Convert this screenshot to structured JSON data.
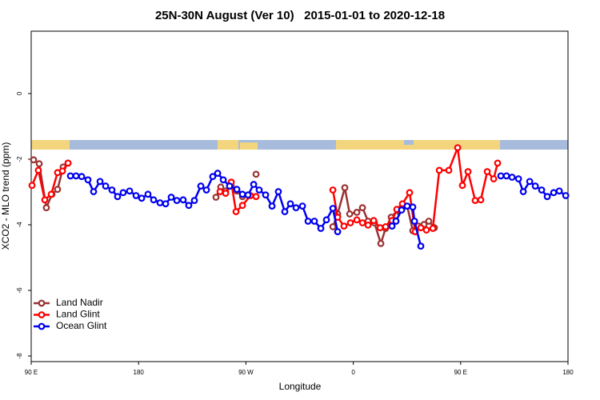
{
  "chart_data": {
    "type": "line",
    "title": "25N-30N August (Ver 10)   2015-01-01 to 2020-12-18",
    "xlabel": "Longitude",
    "ylabel": "XCO2 - MLO trend (ppm)",
    "xlim": [
      90,
      540
    ],
    "ylim": [
      -8.17,
      1.9
    ],
    "xticks": [
      {
        "value": 90,
        "label": "90 E"
      },
      180,
      {
        "value": 270,
        "label": "90 W"
      },
      {
        "value": 360,
        "label": "0"
      },
      {
        "value": 450,
        "label": "90 E"
      },
      {
        "value": 540,
        "label": "180"
      }
    ],
    "yticks": [
      -8,
      -6,
      -4,
      -2,
      0
    ],
    "legend": "bottom-left",
    "series": [
      {
        "name": "Land Nadir",
        "color": "#993333",
        "x": [
          92.0,
          96.7,
          102.7,
          107.4,
          112.1,
          116.8,
          120.8,
          null,
          244.9,
          248.9,
          253.0,
          257.7,
          262.4,
          267.1,
          null,
          278.5,
          null,
          342.9,
          346.9,
          352.9,
          357.0,
          363.0,
          367.7,
          372.4,
          377.7,
          383.1,
          387.1,
          391.8,
          395.8,
          400.5,
          405.2,
          409.9,
          414.6,
          419.3,
          423.3,
          428.0
        ],
        "values": [
          -2.02,
          -2.14,
          -3.48,
          -3.07,
          -2.92,
          -2.24,
          -2.12,
          null,
          -3.16,
          -2.85,
          -2.97,
          -2.82,
          -2.97,
          -3.14,
          null,
          -2.46,
          null,
          -4.06,
          -3.67,
          -2.87,
          -3.67,
          -3.62,
          -3.48,
          -3.89,
          -3.94,
          -4.57,
          -4.11,
          -3.77,
          -3.72,
          -3.53,
          -3.43,
          -4.18,
          -4.04,
          -3.99,
          -3.89,
          -4.09
        ]
      },
      {
        "name": "Land Glint",
        "color": "#ff0000",
        "x": [
          90.7,
          96.0,
          101.4,
          106.8,
          112.1,
          116.2,
          120.9,
          null,
          248.3,
          253.0,
          257.7,
          261.7,
          267.1,
          273.8,
          278.5,
          null,
          342.9,
          346.9,
          352.2,
          357.6,
          363.0,
          367.7,
          372.4,
          377.1,
          382.5,
          387.1,
          392.5,
          396.5,
          401.2,
          407.2,
          411.9,
          416.6,
          421.3,
          426.7,
          432.1,
          440.1,
          447.5,
          451.5,
          456.2,
          462.2,
          466.9,
          472.3,
          477.7,
          481.0
        ],
        "values": [
          -2.8,
          -2.34,
          -3.24,
          -3.07,
          -2.41,
          -2.36,
          -2.12,
          null,
          -2.99,
          -3.04,
          -2.7,
          -3.6,
          -3.41,
          -3.11,
          -3.14,
          null,
          -2.94,
          -3.77,
          -4.04,
          -3.94,
          -3.85,
          -3.94,
          -4.01,
          -3.87,
          -4.09,
          -4.06,
          -3.87,
          -3.53,
          -3.36,
          -3.02,
          -4.21,
          -4.09,
          -4.16,
          -4.11,
          -2.34,
          -2.34,
          -1.65,
          -2.8,
          -2.38,
          -3.26,
          -3.24,
          -2.38,
          -2.6,
          -2.12
        ]
      },
      {
        "name": "Ocean Glint",
        "color": "#0000ee",
        "x": [
          122.9,
          127.6,
          132.3,
          137.6,
          142.3,
          147.7,
          152.4,
          157.7,
          162.4,
          167.1,
          172.5,
          177.9,
          182.6,
          187.9,
          192.6,
          198.0,
          202.7,
          207.4,
          212.1,
          217.4,
          222.1,
          226.8,
          232.2,
          236.9,
          242.2,
          246.3,
          251.0,
          256.3,
          262.4,
          267.1,
          271.8,
          276.5,
          281.1,
          286.5,
          291.9,
          297.2,
          302.6,
          307.3,
          312.0,
          317.4,
          322.1,
          327.4,
          332.8,
          337.5,
          342.9,
          346.9,
          null,
          392.5,
          395.8,
          400.5,
          405.2,
          409.9,
          411.3,
          416.6,
          null,
          483.7,
          488.4,
          493.1,
          498.5,
          502.5,
          507.9,
          512.6,
          517.9,
          522.6,
          528.0,
          532.7,
          538.1
        ],
        "values": [
          -2.51,
          -2.51,
          -2.53,
          -2.63,
          -2.99,
          -2.68,
          -2.82,
          -2.94,
          -3.14,
          -3.02,
          -2.97,
          -3.11,
          -3.19,
          -3.07,
          -3.24,
          -3.33,
          -3.36,
          -3.16,
          -3.26,
          -3.24,
          -3.41,
          -3.26,
          -2.82,
          -2.94,
          -2.53,
          -2.43,
          -2.63,
          -2.82,
          -2.92,
          -3.07,
          -3.09,
          -2.77,
          -2.94,
          -3.09,
          -3.43,
          -2.99,
          -3.6,
          -3.36,
          -3.48,
          -3.43,
          -3.89,
          -3.89,
          -4.11,
          -3.85,
          -3.5,
          -4.21,
          null,
          -4.04,
          -3.89,
          -3.55,
          -3.43,
          -3.46,
          -3.89,
          -4.65,
          null,
          -2.51,
          -2.51,
          -2.55,
          -2.6,
          -2.99,
          -2.68,
          -2.82,
          -2.94,
          -3.14,
          -3.02,
          -2.97,
          -3.11
        ]
      }
    ]
  }
}
